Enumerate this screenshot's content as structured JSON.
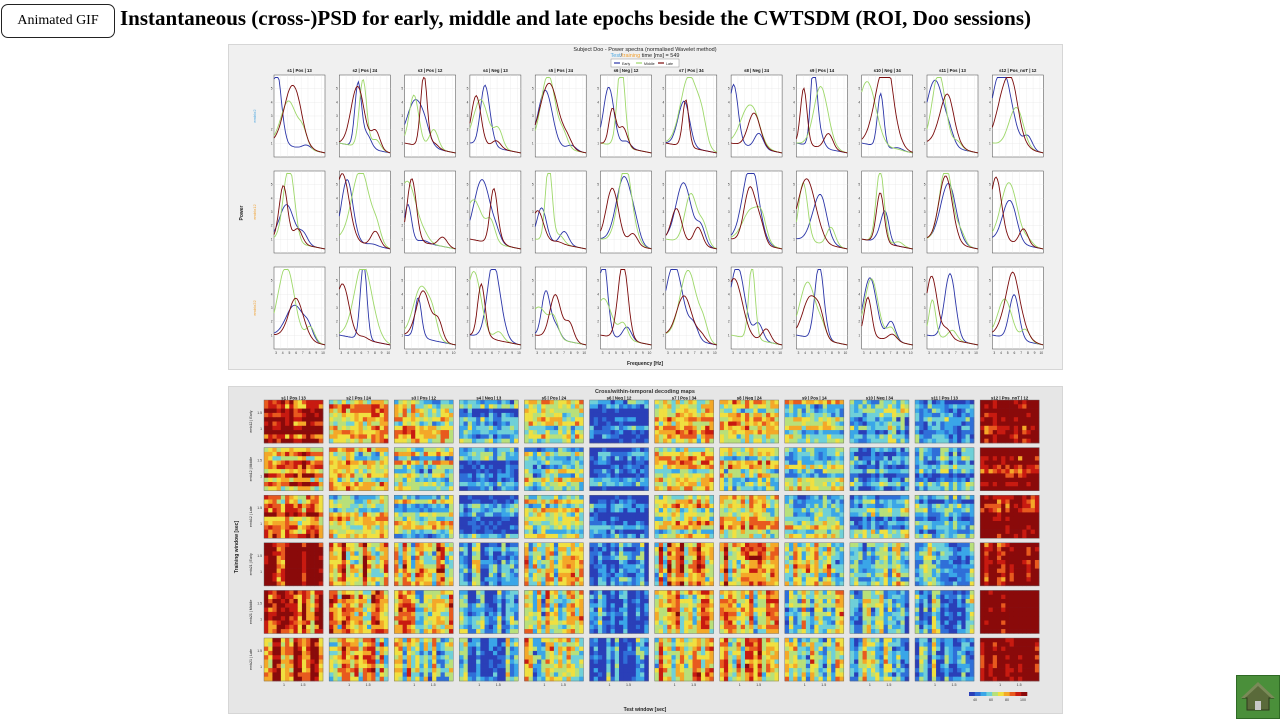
{
  "badge": {
    "label": "Animated  GIF"
  },
  "slide": {
    "title": "Instantaneous (cross-)PSD for early, middle and late epochs beside the CWTSDM (ROI, Doo sessions)"
  },
  "psd_figure": {
    "title": "Subject Doo - Power spectra (normalised Wavelet method)",
    "subtitle_test": "Test",
    "subtitle_training": "training",
    "subtitle_rest": " time [ms] = 549",
    "legend": [
      "Early",
      "Middle",
      "Late"
    ],
    "ylabel": "Power",
    "xlabel": "Frequency [Hz]",
    "row_labels": [
      "emblo2",
      "emblo12",
      "emblo22"
    ],
    "xticks": [
      "3",
      "4",
      "5",
      "6",
      "7",
      "8",
      "9",
      "10"
    ],
    "session_titles": [
      "s1 | Pos | 13",
      "s2 | Pos | 24",
      "s3 | Pos | 12",
      "s4 | Neg | 13",
      "s5 | Pos | 24",
      "s6 | Neg | 12",
      "s7 | Pos | 34",
      "s8 | Neg | 24",
      "s9 | Pos | 14",
      "s10 | Neg | 34",
      "s11 | Pos | 13",
      "s12 | Pos_noT | 12"
    ]
  },
  "map_figure": {
    "title": "Cross/within-temporal decoding maps",
    "ylabel": "Training window [sec]",
    "xlabel": "Test window [sec]",
    "session_titles": [
      "s1 | Pos | 13",
      "s2 | Pos | 24",
      "s3 | Pos | 12",
      "s4 | Neg | 13",
      "s5 | Pos | 24",
      "s6 | Neg | 12",
      "s7 | Pos | 34",
      "s8 | Neg | 24",
      "s9 | Pos | 14",
      "s10 | Neg | 34",
      "s11 | Pos | 13",
      "s12 | Pos_noT | 12"
    ],
    "row_labels": [
      "emb12 | Early",
      "emb12 | Middle",
      "emb12 | Late",
      "emb21 | Early",
      "emb21 | Middle",
      "emb21 | Late"
    ],
    "yticks": [
      "1.5",
      "1"
    ],
    "xticks": [
      "1",
      "1.5"
    ],
    "colorbar_ticks": [
      "40",
      "60",
      "80",
      "100"
    ]
  },
  "colors": {
    "early": "#2b35a8",
    "middle": "#9ed86a",
    "late": "#7a0a0a",
    "test_label": "#4aa6e0",
    "training_label": "#f0a030",
    "home": "#4a8f3a"
  },
  "icons": {
    "home": "home-icon"
  }
}
